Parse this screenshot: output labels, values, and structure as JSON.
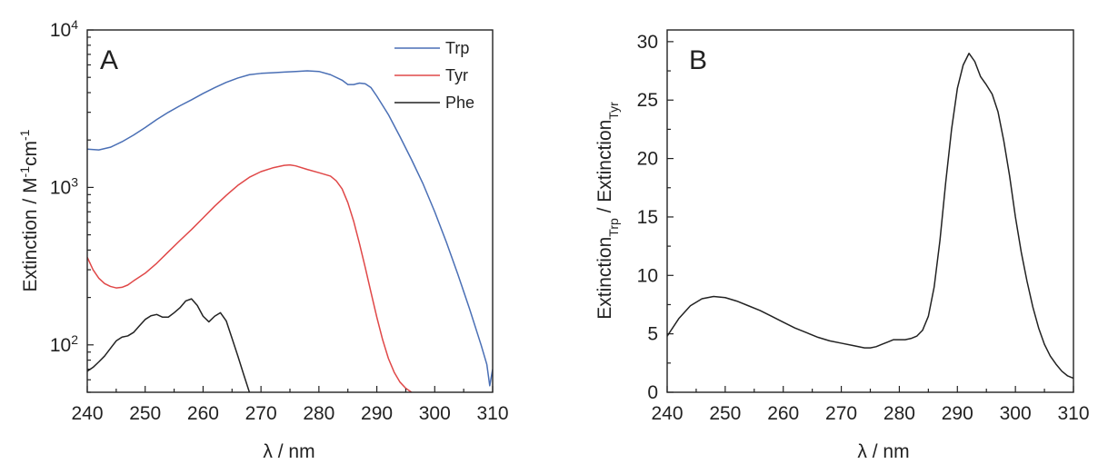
{
  "chart_data": [
    {
      "type": "line",
      "panel_label": "A",
      "xlabel": "λ / nm",
      "ylabel": {
        "base": "Extinction / M",
        "sup1": "-1",
        "mid": "cm",
        "sup2": "-1"
      },
      "xlim": [
        240,
        310
      ],
      "ylim": [
        50,
        10000
      ],
      "yscale": "log",
      "xticks": [
        240,
        250,
        260,
        270,
        280,
        290,
        300,
        310
      ],
      "xtick_labels": [
        "240",
        "250",
        "260",
        "270",
        "280",
        "290",
        "300",
        "310"
      ],
      "yticks": [
        {
          "value": 100,
          "base": "10",
          "exp": "2"
        },
        {
          "value": 1000,
          "base": "10",
          "exp": "3"
        },
        {
          "value": 10000,
          "base": "10",
          "exp": "4"
        }
      ],
      "legend": {
        "position": "top-right"
      },
      "series": [
        {
          "name": "Trp",
          "color": "#4a6fb5",
          "x": [
            240,
            242,
            244,
            246,
            248,
            250,
            252,
            254,
            256,
            258,
            260,
            262,
            264,
            266,
            268,
            270,
            272,
            274,
            276,
            278,
            280,
            282,
            284,
            285,
            286,
            287,
            288,
            289,
            290,
            292,
            294,
            296,
            298,
            300,
            302,
            304,
            306,
            308,
            309,
            309.5,
            310
          ],
          "y": [
            1750,
            1730,
            1800,
            1950,
            2150,
            2400,
            2700,
            3000,
            3300,
            3600,
            3950,
            4300,
            4650,
            4950,
            5200,
            5300,
            5350,
            5400,
            5450,
            5500,
            5450,
            5200,
            4800,
            4500,
            4500,
            4600,
            4550,
            4300,
            3800,
            2900,
            2100,
            1500,
            1050,
            700,
            450,
            280,
            170,
            100,
            75,
            55,
            70
          ]
        },
        {
          "name": "Tyr",
          "color": "#e04848",
          "x": [
            240,
            241,
            242,
            243,
            244,
            245,
            246,
            247,
            248,
            250,
            252,
            254,
            256,
            258,
            260,
            262,
            264,
            266,
            268,
            270,
            272,
            274,
            275,
            276,
            278,
            280,
            282,
            283,
            284,
            285,
            286,
            287,
            288,
            289,
            290,
            291,
            292,
            293,
            294,
            295,
            296
          ],
          "y": [
            360,
            300,
            265,
            245,
            235,
            230,
            232,
            240,
            255,
            285,
            330,
            390,
            460,
            540,
            640,
            760,
            890,
            1030,
            1160,
            1260,
            1330,
            1380,
            1390,
            1370,
            1300,
            1240,
            1180,
            1100,
            980,
            800,
            610,
            440,
            310,
            215,
            150,
            108,
            82,
            67,
            58,
            53,
            50
          ]
        },
        {
          "name": "Phe",
          "color": "#222222",
          "x": [
            240,
            241,
            242,
            243,
            244,
            245,
            246,
            247,
            248,
            249,
            250,
            251,
            252,
            253,
            254,
            255,
            256,
            257,
            258,
            259,
            260,
            261,
            262,
            263,
            264,
            265,
            266,
            267,
            268
          ],
          "y": [
            68,
            72,
            78,
            85,
            95,
            106,
            112,
            114,
            120,
            132,
            145,
            153,
            156,
            150,
            150,
            160,
            172,
            190,
            196,
            178,
            152,
            140,
            152,
            160,
            142,
            110,
            85,
            65,
            50
          ]
        }
      ]
    },
    {
      "type": "line",
      "panel_label": "B",
      "xlabel": "λ / nm",
      "ylabel": {
        "a": "Extinction",
        "a_sub": "Trp",
        "sep": " / Extinction",
        "b_sub": "Tyr"
      },
      "xlim": [
        240,
        310
      ],
      "ylim": [
        0,
        31
      ],
      "yscale": "linear",
      "xticks": [
        240,
        250,
        260,
        270,
        280,
        290,
        300,
        310
      ],
      "xtick_labels": [
        "240",
        "250",
        "260",
        "270",
        "280",
        "290",
        "300",
        "310"
      ],
      "yticks": [
        0,
        5,
        10,
        15,
        20,
        25,
        30
      ],
      "ytick_labels": [
        "0",
        "5",
        "10",
        "15",
        "20",
        "25",
        "30"
      ],
      "series": [
        {
          "color": "#222222",
          "x": [
            240,
            242,
            244,
            246,
            248,
            250,
            252,
            254,
            256,
            258,
            260,
            262,
            264,
            266,
            268,
            270,
            272,
            274,
            275,
            276,
            277,
            278,
            279,
            280,
            281,
            282,
            283,
            284,
            285,
            286,
            287,
            288,
            289,
            290,
            291,
            292,
            293,
            294,
            295,
            296,
            297,
            298,
            299,
            300,
            301,
            302,
            303,
            304,
            305,
            306,
            307,
            308,
            309,
            310
          ],
          "y": [
            4.8,
            6.3,
            7.4,
            8.0,
            8.2,
            8.1,
            7.8,
            7.4,
            7.0,
            6.5,
            6.0,
            5.5,
            5.1,
            4.7,
            4.4,
            4.2,
            4.0,
            3.8,
            3.8,
            3.9,
            4.1,
            4.3,
            4.5,
            4.5,
            4.5,
            4.6,
            4.8,
            5.3,
            6.5,
            9.0,
            13.0,
            18.0,
            22.5,
            26.0,
            28.0,
            29.0,
            28.3,
            27.0,
            26.3,
            25.5,
            24.0,
            21.5,
            18.5,
            15.0,
            12.0,
            9.5,
            7.3,
            5.5,
            4.1,
            3.1,
            2.4,
            1.8,
            1.4,
            1.2
          ]
        }
      ]
    }
  ]
}
